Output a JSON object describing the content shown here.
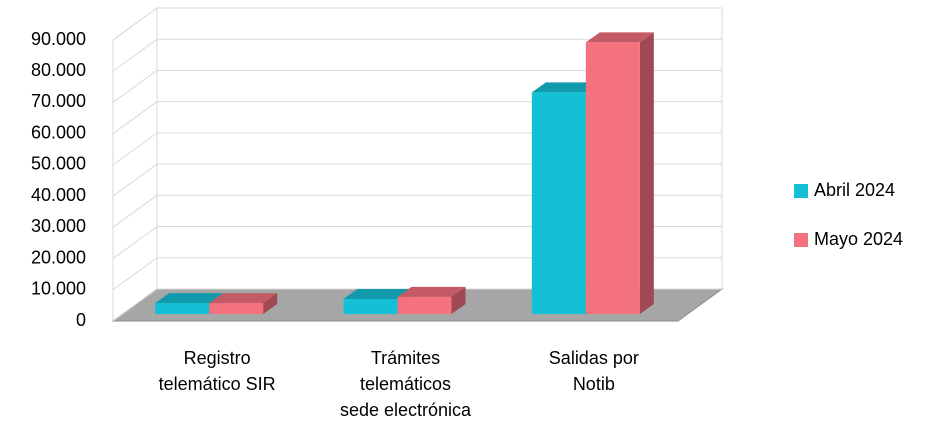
{
  "chart_data": {
    "type": "bar3d",
    "categories": [
      "Registro\ntelemático SIR",
      "Trámites\ntelemáticos\nsede electrónica",
      "Salidas por\nNotib"
    ],
    "series": [
      {
        "name": "Abril 2024",
        "color": "#14c0d6",
        "values": [
          3500,
          4800,
          71000
        ]
      },
      {
        "name": "Mayo 2024",
        "color": "#f4717e",
        "values": [
          3500,
          5500,
          87000
        ]
      }
    ],
    "ylim": [
      0,
      90000
    ],
    "yticks": [
      0,
      {
        "value": 10000,
        "label": "10.000"
      },
      {
        "value": 20000,
        "label": "20.000"
      },
      {
        "value": 30000,
        "label": "30.000"
      },
      {
        "value": 40000,
        "label": "40.000"
      },
      {
        "value": 50000,
        "label": "50.000"
      },
      {
        "value": 60000,
        "label": "60.000"
      },
      {
        "value": 70000,
        "label": "70.000"
      },
      {
        "value": 80000,
        "label": "80.000"
      },
      {
        "value": 90000,
        "label": "90.000"
      }
    ],
    "grid": true,
    "legend": "right"
  }
}
